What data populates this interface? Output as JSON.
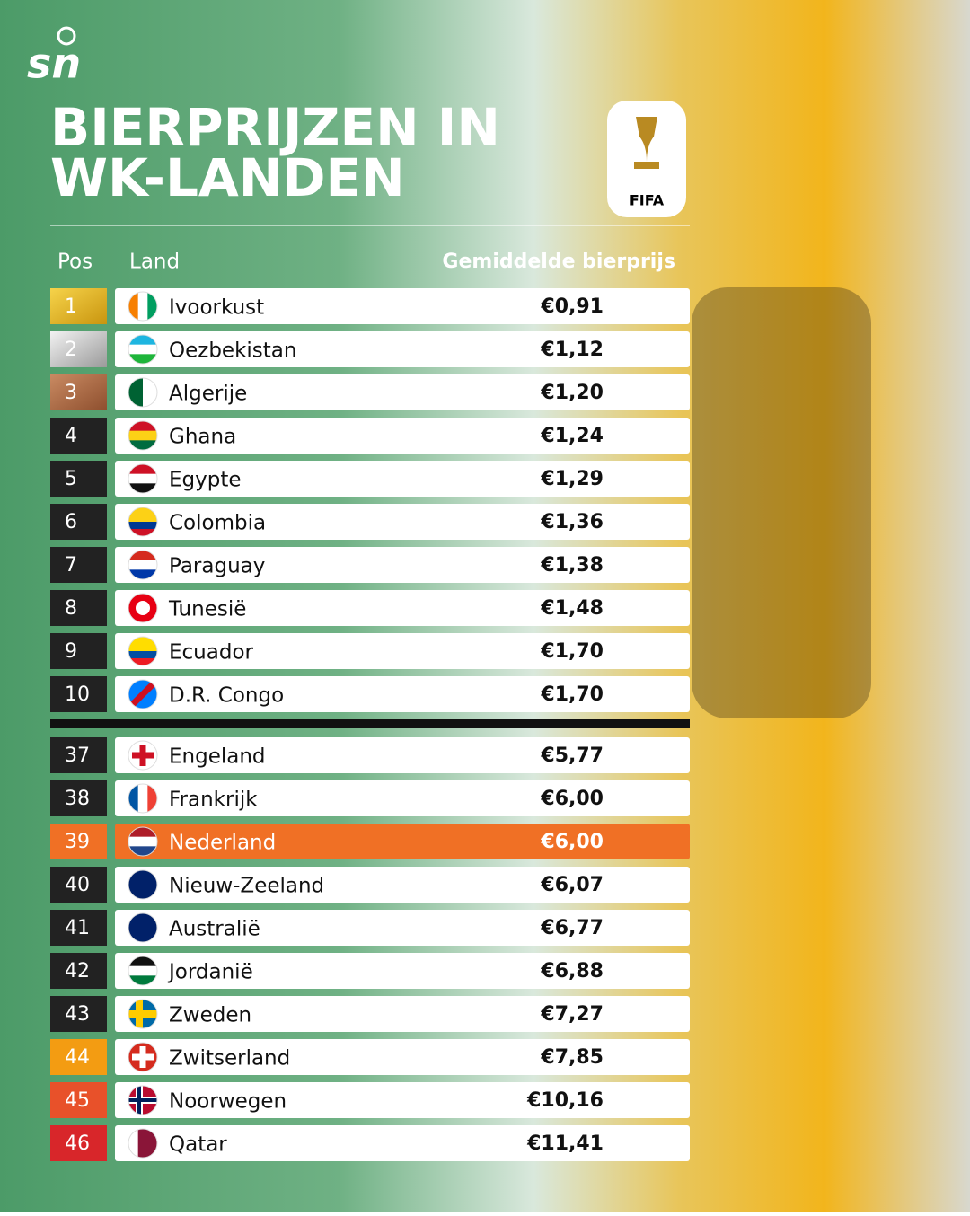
{
  "logo": "sn",
  "title": [
    "BIERPRIJZEN IN",
    "WK-LANDEN"
  ],
  "badge": "FIFA",
  "header": {
    "pos": "Pos",
    "country": "Land",
    "price": "Gemiddelde bierprijs"
  },
  "sections": [
    {
      "rows": [
        {
          "pos": 1,
          "country": "Ivoorkust",
          "price": "€0,91"
        },
        {
          "pos": 2,
          "country": "Oezbekistan",
          "price": "€1,12"
        },
        {
          "pos": 3,
          "country": "Algerije",
          "price": "€1,20"
        },
        {
          "pos": 4,
          "country": "Ghana",
          "price": "€1,24"
        },
        {
          "pos": 5,
          "country": "Egypte",
          "price": "€1,29"
        },
        {
          "pos": 6,
          "country": "Colombia",
          "price": "€1,36"
        },
        {
          "pos": 7,
          "country": "Paraguay",
          "price": "€1,38"
        },
        {
          "pos": 8,
          "country": "Tunesië",
          "price": "€1,48"
        },
        {
          "pos": 9,
          "country": "Ecuador",
          "price": "€1,70"
        },
        {
          "pos": 10,
          "country": "D.R. Congo",
          "price": "€1,70"
        }
      ]
    },
    {
      "rows": [
        {
          "pos": 37,
          "country": "Engeland",
          "price": "€5,77"
        },
        {
          "pos": 38,
          "country": "Frankrijk",
          "price": "€6,00"
        },
        {
          "pos": 39,
          "country": "Nederland",
          "price": "€6,00"
        },
        {
          "pos": 40,
          "country": "Nieuw-Zeeland",
          "price": "€6,07"
        },
        {
          "pos": 41,
          "country": "Australië",
          "price": "€6,77"
        },
        {
          "pos": 42,
          "country": "Jordanië",
          "price": "€6,88"
        },
        {
          "pos": 43,
          "country": "Zweden",
          "price": "€7,27"
        },
        {
          "pos": 44,
          "country": "Zwitserland",
          "price": "€7,85"
        },
        {
          "pos": 45,
          "country": "Noorwegen",
          "price": "€10,16"
        },
        {
          "pos": 46,
          "country": "Qatar",
          "price": "€11,41"
        }
      ]
    }
  ]
}
